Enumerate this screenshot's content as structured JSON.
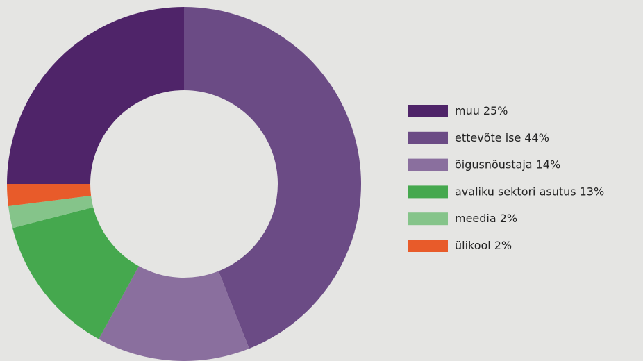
{
  "chart_data": {
    "type": "donut",
    "categories": [
      "muu",
      "ettevõte ise",
      "õigusnõustaja",
      "avaliku sektori asutus",
      "meedia",
      "ülikool"
    ],
    "values": [
      25,
      44,
      14,
      13,
      2,
      2
    ],
    "value_labels": [
      "25%",
      "44%",
      "14%",
      "13%",
      "2%",
      "2%"
    ],
    "colors": [
      "#4f2469",
      "#6b4b85",
      "#8a6f9e",
      "#45a84e",
      "#85c48a",
      "#e85b2a"
    ],
    "legend": "right"
  }
}
